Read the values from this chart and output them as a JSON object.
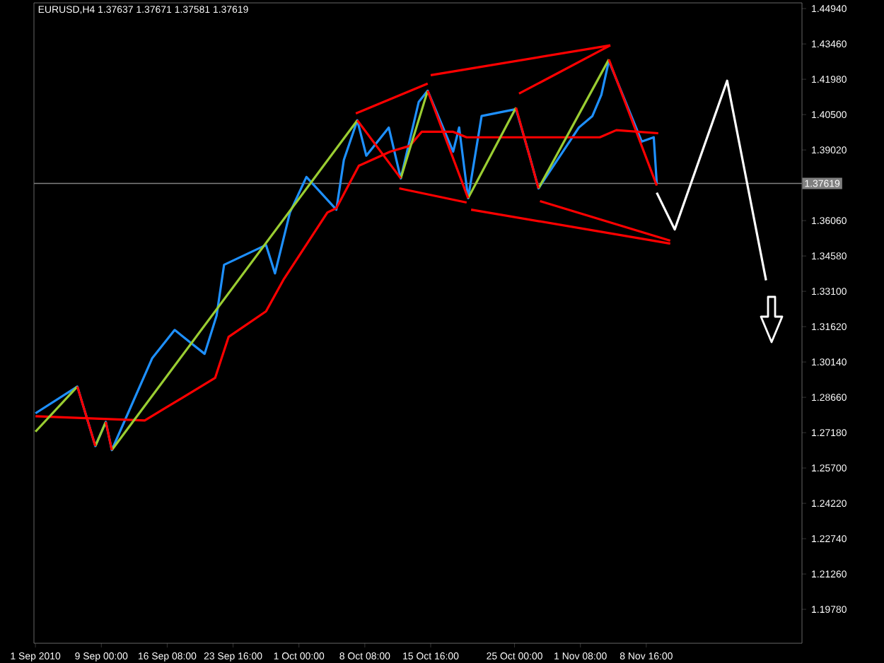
{
  "chart_data": {
    "type": "line",
    "title": "EURUSD,H4  1.37637 1.37671 1.37581 1.37619",
    "xlim": [
      "2010-09-01T12:00",
      "2010-11-26T00:00"
    ],
    "xticks": [
      {
        "value": "2010-09-01T16:00",
        "label": "1 Sep 2010"
      },
      {
        "value": "2010-09-09T00:00",
        "label": "9 Sep 00:00"
      },
      {
        "value": "2010-09-16T08:00",
        "label": "16 Sep 08:00"
      },
      {
        "value": "2010-09-23T16:00",
        "label": "23 Sep 16:00"
      },
      {
        "value": "2010-10-01T00:00",
        "label": "1 Oct 00:00"
      },
      {
        "value": "2010-10-08T08:00",
        "label": "8 Oct 08:00"
      },
      {
        "value": "2010-10-15T16:00",
        "label": "15 Oct 16:00"
      },
      {
        "value": "2010-10-25T00:00",
        "label": "25 Oct 00:00"
      },
      {
        "value": "2010-11-01T08:00",
        "label": "1 Nov 08:00"
      },
      {
        "value": "2010-11-08T16:00",
        "label": "8 Nov 16:00"
      }
    ],
    "ylim": [
      1.1836,
      1.4518
    ],
    "yticks": [
      {
        "value": 1.1978,
        "label": "1.19780"
      },
      {
        "value": 1.2126,
        "label": "1.21260"
      },
      {
        "value": 1.2274,
        "label": "1.22740"
      },
      {
        "value": 1.2422,
        "label": "1.24220"
      },
      {
        "value": 1.257,
        "label": "1.25700"
      },
      {
        "value": 1.2718,
        "label": "1.27180"
      },
      {
        "value": 1.2866,
        "label": "1.28660"
      },
      {
        "value": 1.3014,
        "label": "1.30140"
      },
      {
        "value": 1.3162,
        "label": "1.31620"
      },
      {
        "value": 1.331,
        "label": "1.33100"
      },
      {
        "value": 1.3458,
        "label": "1.34580"
      },
      {
        "value": 1.3606,
        "label": "1.36060"
      },
      {
        "value": 1.3902,
        "label": "1.39020"
      },
      {
        "value": 1.405,
        "label": "1.40500"
      },
      {
        "value": 1.4198,
        "label": "1.41980"
      },
      {
        "value": 1.4346,
        "label": "1.43460"
      },
      {
        "value": 1.4494,
        "label": "1.44940"
      }
    ],
    "ref_lines": [
      {
        "axis": "y",
        "value": 1.37619,
        "label": "1.37619",
        "color": "#808080"
      }
    ],
    "series": [
      {
        "color": "#1e90ff",
        "x": [
          "2010-09-01T16:00",
          "2010-09-06T08:00",
          "2010-09-08T08:00",
          "2010-09-09T12:00",
          "2010-09-10T04:00",
          "2010-09-14T16:00",
          "2010-09-17T04:00",
          "2010-09-20T12:00",
          "2010-09-21T20:00",
          "2010-09-22T16:00",
          "2010-09-27T08:00",
          "2010-09-28T08:00",
          "2010-09-30T00:00",
          "2010-10-01T20:00",
          "2010-10-05T04:00",
          "2010-10-06T00:00",
          "2010-10-07T12:00",
          "2010-10-08T12:00",
          "2010-10-11T00:00",
          "2010-10-12T08:00",
          "2010-10-14T08:00",
          "2010-10-15T08:00",
          "2010-10-18T04:00",
          "2010-10-18T20:00",
          "2010-10-19T20:00",
          "2010-10-21T08:00",
          "2010-10-25T04:00",
          "2010-10-26T16:00",
          "2010-10-27T16:00",
          "2010-11-01T04:00",
          "2010-11-02T16:00",
          "2010-11-03T16:00",
          "2010-11-04T12:00",
          "2010-11-08T04:00",
          "2010-11-09T12:00",
          "2010-11-09T20:00"
        ],
        "values": [
          1.2799,
          1.2911,
          1.2662,
          1.2763,
          1.2645,
          1.303,
          1.3148,
          1.3048,
          1.3208,
          1.3421,
          1.3504,
          1.3385,
          1.364,
          1.3789,
          1.3652,
          1.386,
          1.4026,
          1.3878,
          1.3996,
          1.3783,
          1.4103,
          1.415,
          1.3895,
          1.3996,
          1.37,
          1.4044,
          1.4073,
          1.3878,
          1.3741,
          1.3996,
          1.4044,
          1.4133,
          1.4275,
          1.3937,
          1.3955,
          1.3762
        ]
      },
      {
        "color": "#ff0000",
        "x": [
          "2010-09-01T16:00",
          "2010-09-13T20:00",
          "2010-09-16T04:00",
          "2010-09-21T16:00",
          "2010-09-23T04:00",
          "2010-09-27T08:00",
          "2010-09-29T08:00",
          "2010-10-04T04:00",
          "2010-10-05T04:00",
          "2010-10-07T16:00",
          "2010-10-11T04:00",
          "2010-10-13T08:00",
          "2010-10-14T16:00",
          "2010-10-18T04:00",
          "2010-10-19T16:00",
          "2010-10-26T16:00",
          "2010-11-03T12:00",
          "2010-11-05T08:00",
          "2010-11-10T00:00"
        ],
        "values": [
          1.2787,
          1.2769,
          1.2822,
          1.2947,
          1.3119,
          1.3226,
          1.3362,
          1.364,
          1.3658,
          1.3836,
          1.3895,
          1.3919,
          1.3978,
          1.3978,
          1.3955,
          1.3955,
          1.3955,
          1.3985,
          1.3972
        ]
      },
      {
        "color": "#9acd32",
        "x": [
          "2010-09-01T16:00",
          "2010-09-06T08:00",
          null,
          "2010-09-08T08:00",
          "2010-09-09T12:00",
          null,
          "2010-09-10T04:00",
          "2010-10-07T12:00",
          null,
          "2010-10-12T08:00",
          "2010-10-15T08:00",
          null,
          "2010-10-19T20:00",
          "2010-10-25T04:00",
          null,
          "2010-10-27T16:00",
          "2010-11-04T12:00"
        ],
        "values": [
          1.2722,
          1.2911,
          null,
          1.2662,
          1.2763,
          null,
          1.2645,
          1.4026,
          null,
          1.3783,
          1.415,
          null,
          1.37,
          1.4079,
          null,
          1.3741,
          1.4281
        ]
      },
      {
        "color": "#ff0000",
        "x": [
          "2010-09-06T08:00",
          "2010-09-08T08:00",
          null,
          "2010-09-09T12:00",
          "2010-09-10T04:00",
          null,
          "2010-10-07T12:00",
          "2010-10-12T08:00",
          null,
          "2010-10-15T08:00",
          "2010-10-19T20:00",
          null,
          "2010-10-25T04:00",
          "2010-10-27T16:00",
          null,
          "2010-11-04T12:00",
          "2010-11-09T20:00"
        ],
        "values": [
          1.2911,
          1.2662,
          null,
          1.2763,
          1.2645,
          null,
          1.4026,
          1.3783,
          null,
          1.415,
          1.37,
          null,
          1.4079,
          1.3741,
          null,
          1.4281,
          1.3753
        ]
      },
      {
        "color": "#ff0000",
        "x": [
          "2010-10-07T08:00",
          "2010-10-15T08:00",
          null,
          "2010-10-15T16:00",
          "2010-11-04T16:00",
          null,
          "2010-10-25T12:00",
          "2010-11-04T16:00",
          null,
          "2010-10-12T04:00",
          "2010-10-19T16:00",
          null,
          "2010-10-20T04:00",
          "2010-11-11T08:00",
          null,
          "2010-10-27T20:00",
          "2010-11-11T08:00"
        ],
        "values": [
          1.4055,
          1.418,
          null,
          1.4215,
          1.434,
          null,
          1.4138,
          1.434,
          null,
          1.3741,
          1.3682,
          null,
          1.3652,
          1.351,
          null,
          1.3688,
          1.3522
        ]
      },
      {
        "color": "#ffffff",
        "x": [
          "2010-11-09T20:00",
          "2010-11-11T20:00",
          "2010-11-17T16:00",
          "2010-11-22T00:00"
        ],
        "values": [
          1.3723,
          1.3569,
          1.4192,
          1.3356
        ]
      }
    ]
  }
}
